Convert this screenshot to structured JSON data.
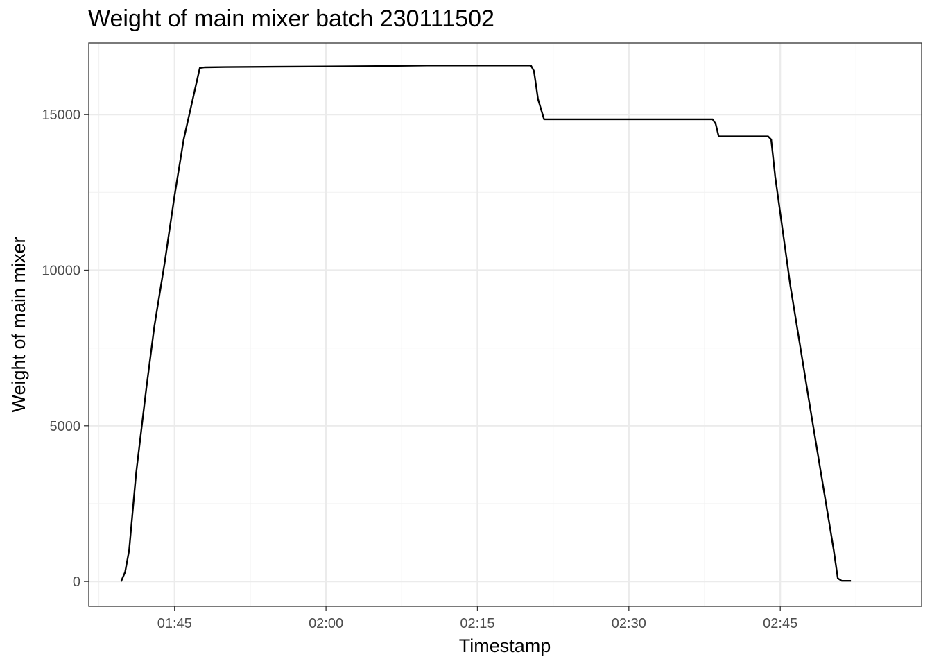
{
  "chart_data": {
    "type": "line",
    "title": "Weight of main mixer batch 230111502",
    "xlabel": "Timestamp",
    "ylabel": "Weight of main mixer",
    "x_unit": "time (HH:MM)",
    "xlim": [
      "01:36:30",
      "02:59:00"
    ],
    "ylim": [
      -800,
      17300
    ],
    "x_ticks": [
      "01:45",
      "02:00",
      "02:15",
      "02:30",
      "02:45"
    ],
    "y_ticks": [
      0,
      5000,
      10000,
      15000
    ],
    "grid": true,
    "legend": "none",
    "series": [
      {
        "color": "#000000",
        "points": [
          [
            "01:39:42",
            0
          ],
          [
            "01:40:06",
            300
          ],
          [
            "01:40:30",
            1000
          ],
          [
            "01:41:12",
            3500
          ],
          [
            "01:42:12",
            6200
          ],
          [
            "01:43:00",
            8200
          ],
          [
            "01:44:00",
            10200
          ],
          [
            "01:45:00",
            12400
          ],
          [
            "01:45:54",
            14200
          ],
          [
            "01:47:30",
            16500
          ],
          [
            "01:48:00",
            16520
          ],
          [
            "01:50:00",
            16530
          ],
          [
            "01:55:00",
            16540
          ],
          [
            "02:00:00",
            16550
          ],
          [
            "02:05:00",
            16560
          ],
          [
            "02:10:00",
            16580
          ],
          [
            "02:15:00",
            16580
          ],
          [
            "02:20:18",
            16580
          ],
          [
            "02:20:36",
            16400
          ],
          [
            "02:21:00",
            15500
          ],
          [
            "02:21:36",
            14850
          ],
          [
            "02:25:00",
            14850
          ],
          [
            "02:30:00",
            14850
          ],
          [
            "02:35:00",
            14850
          ],
          [
            "02:38:18",
            14850
          ],
          [
            "02:38:36",
            14700
          ],
          [
            "02:38:54",
            14300
          ],
          [
            "02:40:00",
            14300
          ],
          [
            "02:43:48",
            14300
          ],
          [
            "02:44:06",
            14200
          ],
          [
            "02:44:30",
            13000
          ],
          [
            "02:46:00",
            9500
          ],
          [
            "02:48:00",
            5500
          ],
          [
            "02:50:18",
            1000
          ],
          [
            "02:50:42",
            100
          ],
          [
            "02:51:06",
            20
          ],
          [
            "02:52:00",
            20
          ]
        ]
      }
    ]
  },
  "colors": {
    "line": "#000000",
    "grid_major": "#ebebeb",
    "grid_minor": "#f2f2f2",
    "panel_border": "#333333",
    "tick_label": "#4d4d4d"
  }
}
